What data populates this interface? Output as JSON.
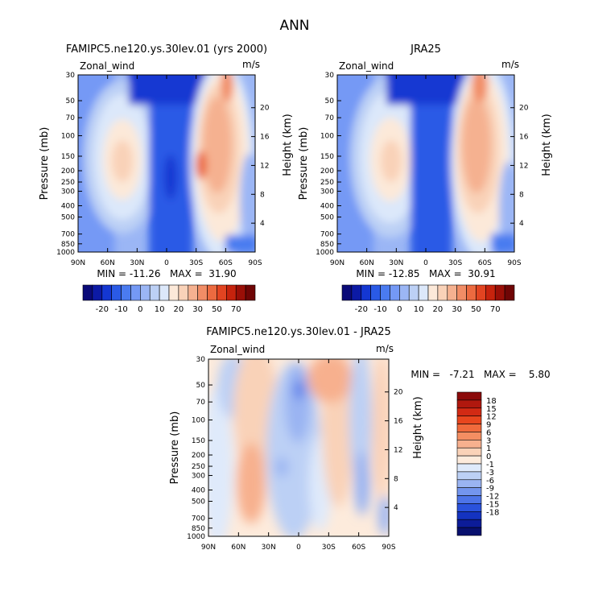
{
  "figure": {
    "title": "ANN"
  },
  "chart_data": [
    {
      "type": "heatmap",
      "id": "model",
      "title": "FAMIPC5.ne120.ys.30lev.01 (yrs 2000)",
      "variable_label": "Zonal_wind",
      "units": "m/s",
      "ylabel": "Pressure (mb)",
      "ylabel_right": "Height (km)",
      "x_ticks": [
        "90N",
        "60N",
        "30N",
        "0",
        "30S",
        "60S",
        "90S"
      ],
      "x_values": [
        90,
        60,
        30,
        0,
        -30,
        -60,
        -90
      ],
      "xlim": [
        90,
        -90
      ],
      "y_ticks": [
        "30",
        "50",
        "70",
        "100",
        "150",
        "200",
        "250",
        "300",
        "400",
        "500",
        "700",
        "850",
        "1000"
      ],
      "y_values": [
        30,
        50,
        70,
        100,
        150,
        200,
        250,
        300,
        400,
        500,
        700,
        850,
        1000
      ],
      "ylim": [
        30,
        1000
      ],
      "y_scale": "log",
      "height_ticks": [
        "20",
        "16",
        "12",
        "8",
        "4"
      ],
      "height_values": [
        20,
        16,
        12,
        8,
        4
      ],
      "stats": "MIN = -11.26   MAX =  31.90",
      "colorbar": {
        "orientation": "horizontal",
        "labels": [
          "-20",
          "-10",
          "0",
          "10",
          "20",
          "30",
          "50",
          "70"
        ],
        "colors": [
          "#0a0a78",
          "#0c1aa5",
          "#1437d2",
          "#2a5ae6",
          "#4a7bf0",
          "#7499f5",
          "#9bb6f5",
          "#bcd0f5",
          "#dce8fa",
          "#fce9d9",
          "#f9d2b8",
          "#f5b190",
          "#f18d66",
          "#ec6a40",
          "#e24421",
          "#c6230d",
          "#9a0f07",
          "#6f0505"
        ]
      }
    },
    {
      "type": "heatmap",
      "id": "obs",
      "title": "JRA25",
      "variable_label": "Zonal_wind",
      "units": "m/s",
      "ylabel": "Pressure (mb)",
      "ylabel_right": "Height (km)",
      "x_ticks": [
        "90N",
        "60N",
        "30N",
        "0",
        "30S",
        "60S",
        "90S"
      ],
      "x_values": [
        90,
        60,
        30,
        0,
        -30,
        -60,
        -90
      ],
      "xlim": [
        90,
        -90
      ],
      "y_ticks": [
        "30",
        "50",
        "70",
        "100",
        "150",
        "200",
        "250",
        "300",
        "400",
        "500",
        "700",
        "850",
        "1000"
      ],
      "y_values": [
        30,
        50,
        70,
        100,
        150,
        200,
        250,
        300,
        400,
        500,
        700,
        850,
        1000
      ],
      "ylim": [
        30,
        1000
      ],
      "y_scale": "log",
      "height_ticks": [
        "20",
        "16",
        "12",
        "8",
        "4"
      ],
      "height_values": [
        20,
        16,
        12,
        8,
        4
      ],
      "stats": "MIN = -12.85   MAX =  30.91",
      "colorbar": {
        "orientation": "horizontal",
        "labels": [
          "-20",
          "-10",
          "0",
          "10",
          "20",
          "30",
          "50",
          "70"
        ],
        "colors": [
          "#0a0a78",
          "#0c1aa5",
          "#1437d2",
          "#2a5ae6",
          "#4a7bf0",
          "#7499f5",
          "#9bb6f5",
          "#bcd0f5",
          "#dce8fa",
          "#fce9d9",
          "#f9d2b8",
          "#f5b190",
          "#f18d66",
          "#ec6a40",
          "#e24421",
          "#c6230d",
          "#9a0f07",
          "#6f0505"
        ]
      }
    },
    {
      "type": "heatmap",
      "id": "diff",
      "title": "FAMIPC5.ne120.ys.30lev.01 - JRA25",
      "variable_label": "Zonal_wind",
      "units": "m/s",
      "ylabel": "Pressure (mb)",
      "ylabel_right": "Height (km)",
      "x_ticks": [
        "90N",
        "60N",
        "30N",
        "0",
        "30S",
        "60S",
        "90S"
      ],
      "x_values": [
        90,
        60,
        30,
        0,
        -30,
        -60,
        -90
      ],
      "xlim": [
        90,
        -90
      ],
      "y_ticks": [
        "30",
        "50",
        "70",
        "100",
        "150",
        "200",
        "250",
        "300",
        "400",
        "500",
        "700",
        "850",
        "1000"
      ],
      "y_values": [
        30,
        50,
        70,
        100,
        150,
        200,
        250,
        300,
        400,
        500,
        700,
        850,
        1000
      ],
      "ylim": [
        30,
        1000
      ],
      "y_scale": "log",
      "height_ticks": [
        "20",
        "16",
        "12",
        "8",
        "4"
      ],
      "height_values": [
        20,
        16,
        12,
        8,
        4
      ],
      "stats": "MIN =   -7.21   MAX =    5.80",
      "colorbar": {
        "orientation": "vertical",
        "labels": [
          "18",
          "15",
          "12",
          "9",
          "6",
          "3",
          "1",
          "0",
          "-1",
          "-3",
          "-6",
          "-9",
          "-12",
          "-15",
          "-18"
        ],
        "colors": [
          "#8b0a0a",
          "#b0180e",
          "#d22a14",
          "#e8461e",
          "#f06a3c",
          "#f48e62",
          "#f7b08e",
          "#fad2b8",
          "#fdebdc",
          "#dfeafb",
          "#bcd0f5",
          "#9ab4f2",
          "#7395ee",
          "#4d74e8",
          "#2a52dc",
          "#1433c0",
          "#0c1c98",
          "#08106e"
        ]
      }
    }
  ]
}
